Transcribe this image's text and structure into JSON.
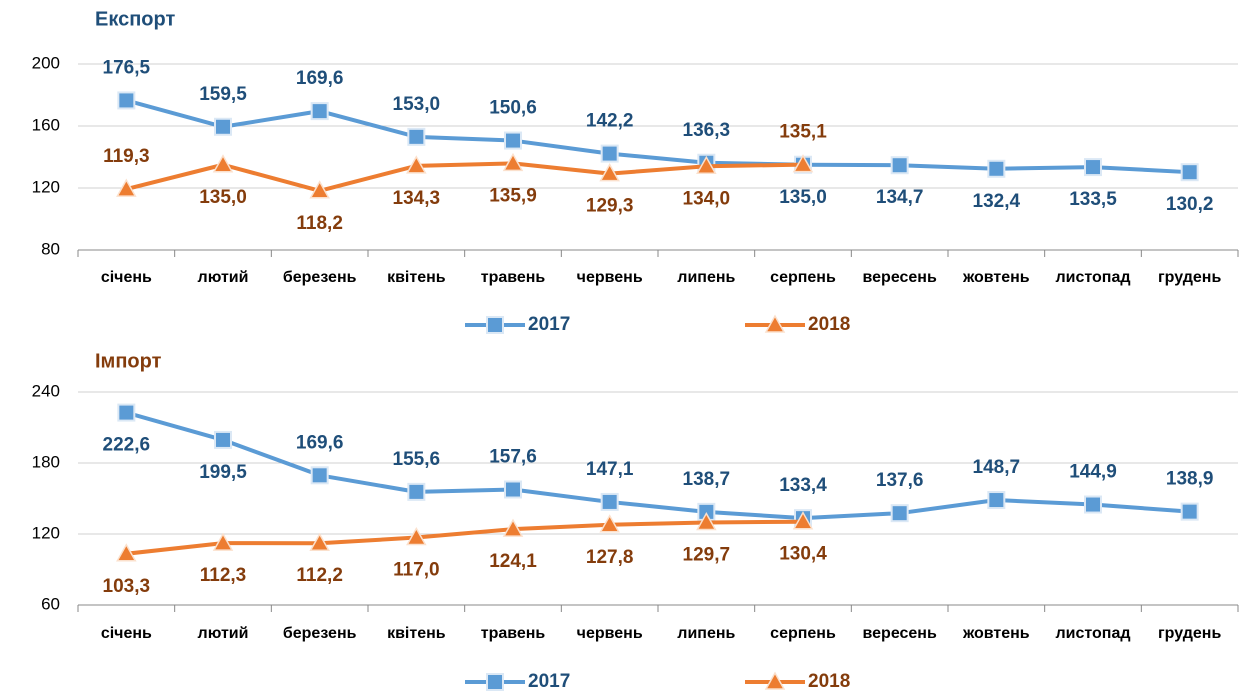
{
  "chart_data": [
    {
      "type": "line",
      "title": "Експорт",
      "title_color": "#1f4e79",
      "categories": [
        "січень",
        "лютий",
        "березень",
        "квітень",
        "травень",
        "червень",
        "липень",
        "серпень",
        "вересень",
        "жовтень",
        "листопад",
        "грудень"
      ],
      "ylim": [
        80,
        200
      ],
      "yticks": [
        80,
        120,
        160,
        200
      ],
      "grid": true,
      "legend": "bottom",
      "series": [
        {
          "name": "2017",
          "color": "#5b9bd5",
          "label_color": "#1f4e79",
          "marker": "square",
          "values": [
            176.5,
            159.5,
            169.6,
            153.0,
            150.6,
            142.2,
            136.3,
            135.0,
            134.7,
            132.4,
            133.5,
            130.2
          ],
          "value_labels": [
            "176,5",
            "159,5",
            "169,6",
            "153,0",
            "150,6",
            "142,2",
            "136,3",
            "135,0",
            "134,7",
            "132,4",
            "133,5",
            "130,2"
          ]
        },
        {
          "name": "2018",
          "color": "#ed7d31",
          "label_color": "#843c0c",
          "marker": "triangle",
          "values": [
            119.3,
            135.0,
            118.2,
            134.3,
            135.9,
            129.3,
            134.0,
            135.1,
            null,
            null,
            null,
            null
          ],
          "value_labels": [
            "119,3",
            "135,0",
            "118,2",
            "134,3",
            "135,9",
            "129,3",
            "134,0",
            "135,1",
            null,
            null,
            null,
            null
          ]
        }
      ]
    },
    {
      "type": "line",
      "title": "Імпорт",
      "title_color": "#843c0c",
      "categories": [
        "січень",
        "лютий",
        "березень",
        "квітень",
        "травень",
        "червень",
        "липень",
        "серпень",
        "вересень",
        "жовтень",
        "листопад",
        "грудень"
      ],
      "ylim": [
        60,
        240
      ],
      "yticks": [
        60,
        120,
        180,
        240
      ],
      "grid": true,
      "legend": "bottom",
      "series": [
        {
          "name": "2017",
          "color": "#5b9bd5",
          "label_color": "#1f4e79",
          "marker": "square",
          "values": [
            222.6,
            199.5,
            169.6,
            155.6,
            157.6,
            147.1,
            138.7,
            133.4,
            137.6,
            148.7,
            144.9,
            138.9
          ],
          "value_labels": [
            "222,6",
            "199,5",
            "169,6",
            "155,6",
            "157,6",
            "147,1",
            "138,7",
            "133,4",
            "137,6",
            "148,7",
            "144,9",
            "138,9"
          ]
        },
        {
          "name": "2018",
          "color": "#ed7d31",
          "label_color": "#843c0c",
          "marker": "triangle",
          "values": [
            103.3,
            112.3,
            112.2,
            117.0,
            124.1,
            127.8,
            129.7,
            130.4,
            null,
            null,
            null,
            null
          ],
          "value_labels": [
            "103,3",
            "112,3",
            "112,2",
            "117,0",
            "124,1",
            "127,8",
            "129,7",
            "130,4",
            null,
            null,
            null,
            null
          ]
        }
      ]
    }
  ]
}
